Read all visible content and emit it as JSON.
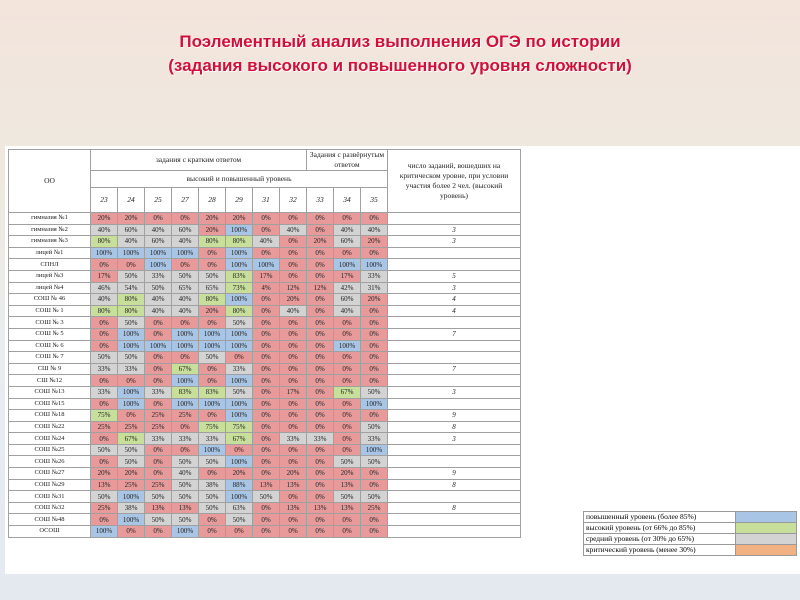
{
  "title": {
    "line1": "Поэлементный анализ выполнения ОГЭ по истории",
    "line2": "(задания высокого и повышенного уровня сложности)"
  },
  "colors": {
    "title": "#d0103a",
    "hi": "#a9c5e6",
    "mid": "#c8df9c",
    "avg": "#d3d3d3",
    "low": "#e89a9a"
  },
  "table": {
    "oo_header": "ОО",
    "short_answer_header": "задания с кратким ответом",
    "long_answer_header": "Задания с развёрнутым ответом",
    "level_header": "высокий и повышенный уровень",
    "critical_header": "число заданий, вошедших на критическом уровне, при условии участия более 2 чел. (высокий уровень)",
    "task_numbers": [
      "23",
      "24",
      "25",
      "27",
      "28",
      "29",
      "31",
      "32",
      "33",
      "34",
      "35"
    ],
    "rows": [
      {
        "name": "гимназия №1",
        "values": [
          "20%",
          "20%",
          "0%",
          "0%",
          "20%",
          "20%",
          "0%",
          "0%",
          "0%",
          "0%",
          "0%"
        ],
        "crit": ""
      },
      {
        "name": "гимназия №2",
        "values": [
          "40%",
          "60%",
          "40%",
          "60%",
          "20%",
          "100%",
          "0%",
          "40%",
          "0%",
          "40%",
          "40%"
        ],
        "crit": "3"
      },
      {
        "name": "гимназия №3",
        "values": [
          "80%",
          "40%",
          "60%",
          "40%",
          "80%",
          "80%",
          "40%",
          "0%",
          "20%",
          "60%",
          "20%"
        ],
        "crit": "3"
      },
      {
        "name": "лицей №1",
        "values": [
          "100%",
          "100%",
          "100%",
          "100%",
          "0%",
          "100%",
          "0%",
          "0%",
          "0%",
          "0%",
          "0%"
        ],
        "crit": ""
      },
      {
        "name": "СПНЛ",
        "values": [
          "0%",
          "0%",
          "100%",
          "0%",
          "0%",
          "100%",
          "100%",
          "0%",
          "0%",
          "100%",
          "100%"
        ],
        "crit": ""
      },
      {
        "name": "лицей №3",
        "values": [
          "17%",
          "50%",
          "33%",
          "50%",
          "50%",
          "83%",
          "17%",
          "0%",
          "0%",
          "17%",
          "33%"
        ],
        "crit": "5"
      },
      {
        "name": "лицей №4",
        "values": [
          "46%",
          "54%",
          "50%",
          "65%",
          "65%",
          "73%",
          "4%",
          "12%",
          "12%",
          "42%",
          "31%"
        ],
        "crit": "3"
      },
      {
        "name": "СОШ № 46",
        "values": [
          "40%",
          "80%",
          "40%",
          "40%",
          "80%",
          "100%",
          "0%",
          "20%",
          "0%",
          "60%",
          "20%"
        ],
        "crit": "4"
      },
      {
        "name": "СОШ № 1",
        "values": [
          "80%",
          "80%",
          "40%",
          "40%",
          "20%",
          "80%",
          "0%",
          "40%",
          "0%",
          "40%",
          "0%"
        ],
        "crit": "4"
      },
      {
        "name": "СОШ № 3",
        "values": [
          "0%",
          "50%",
          "0%",
          "0%",
          "0%",
          "50%",
          "0%",
          "0%",
          "0%",
          "0%",
          "0%"
        ],
        "crit": ""
      },
      {
        "name": "СОШ № 5",
        "values": [
          "0%",
          "100%",
          "0%",
          "100%",
          "100%",
          "100%",
          "0%",
          "0%",
          "0%",
          "0%",
          "0%"
        ],
        "crit": "7"
      },
      {
        "name": "СОШ № 6",
        "values": [
          "0%",
          "100%",
          "100%",
          "100%",
          "100%",
          "100%",
          "0%",
          "0%",
          "0%",
          "100%",
          "0%"
        ],
        "crit": ""
      },
      {
        "name": "СОШ № 7",
        "values": [
          "50%",
          "50%",
          "0%",
          "0%",
          "50%",
          "0%",
          "0%",
          "0%",
          "0%",
          "0%",
          "0%"
        ],
        "crit": ""
      },
      {
        "name": "СШ № 9",
        "values": [
          "33%",
          "33%",
          "0%",
          "67%",
          "0%",
          "33%",
          "0%",
          "0%",
          "0%",
          "0%",
          "0%"
        ],
        "crit": "7"
      },
      {
        "name": "СШ №12",
        "values": [
          "0%",
          "0%",
          "0%",
          "100%",
          "0%",
          "100%",
          "0%",
          "0%",
          "0%",
          "0%",
          "0%"
        ],
        "crit": ""
      },
      {
        "name": "СОШ №13",
        "values": [
          "33%",
          "100%",
          "33%",
          "83%",
          "83%",
          "50%",
          "0%",
          "17%",
          "0%",
          "67%",
          "50%"
        ],
        "crit": "3"
      },
      {
        "name": "СОШ №15",
        "values": [
          "0%",
          "100%",
          "0%",
          "100%",
          "100%",
          "100%",
          "0%",
          "0%",
          "0%",
          "0%",
          "100%"
        ],
        "crit": ""
      },
      {
        "name": "СОШ №18",
        "values": [
          "75%",
          "0%",
          "25%",
          "25%",
          "0%",
          "100%",
          "0%",
          "0%",
          "0%",
          "0%",
          "0%"
        ],
        "crit": "9"
      },
      {
        "name": "СОШ №22",
        "values": [
          "25%",
          "25%",
          "25%",
          "0%",
          "75%",
          "75%",
          "0%",
          "0%",
          "0%",
          "0%",
          "50%"
        ],
        "crit": "8"
      },
      {
        "name": "СОШ №24",
        "values": [
          "0%",
          "67%",
          "33%",
          "33%",
          "33%",
          "67%",
          "0%",
          "33%",
          "33%",
          "0%",
          "33%"
        ],
        "crit": "3"
      },
      {
        "name": "СОШ №25",
        "values": [
          "50%",
          "50%",
          "0%",
          "0%",
          "100%",
          "0%",
          "0%",
          "0%",
          "0%",
          "0%",
          "100%"
        ],
        "crit": ""
      },
      {
        "name": "СОШ №26",
        "values": [
          "0%",
          "50%",
          "0%",
          "50%",
          "50%",
          "100%",
          "0%",
          "0%",
          "0%",
          "50%",
          "50%"
        ],
        "crit": ""
      },
      {
        "name": "СОШ №27",
        "values": [
          "20%",
          "20%",
          "0%",
          "40%",
          "0%",
          "20%",
          "0%",
          "20%",
          "0%",
          "20%",
          "0%"
        ],
        "crit": "9"
      },
      {
        "name": "СОШ №29",
        "values": [
          "13%",
          "25%",
          "25%",
          "50%",
          "38%",
          "88%",
          "13%",
          "13%",
          "0%",
          "13%",
          "0%"
        ],
        "crit": "8"
      },
      {
        "name": "СОШ №31",
        "values": [
          "50%",
          "100%",
          "50%",
          "50%",
          "50%",
          "100%",
          "50%",
          "0%",
          "0%",
          "50%",
          "50%"
        ],
        "crit": ""
      },
      {
        "name": "СОШ №32",
        "values": [
          "25%",
          "38%",
          "13%",
          "13%",
          "50%",
          "63%",
          "0%",
          "13%",
          "13%",
          "13%",
          "25%"
        ],
        "crit": "8"
      },
      {
        "name": "СОШ №48",
        "values": [
          "0%",
          "100%",
          "50%",
          "50%",
          "0%",
          "50%",
          "0%",
          "0%",
          "0%",
          "0%",
          "0%"
        ],
        "crit": ""
      },
      {
        "name": "ОСОШ",
        "values": [
          "100%",
          "0%",
          "0%",
          "100%",
          "0%",
          "0%",
          "0%",
          "0%",
          "0%",
          "0%",
          "0%"
        ],
        "crit": ""
      }
    ]
  },
  "legend": [
    {
      "label": "повышенный уровень (более 85%)",
      "color": "#a9c5e6"
    },
    {
      "label": "высокий уровень (от 66% до 85%)",
      "color": "#c8df9c"
    },
    {
      "label": "средний уровень (от 30% до 65%)",
      "color": "#d3d3d3"
    },
    {
      "label": "критический уровень (менее 30%)",
      "color": "#f2b183"
    }
  ]
}
